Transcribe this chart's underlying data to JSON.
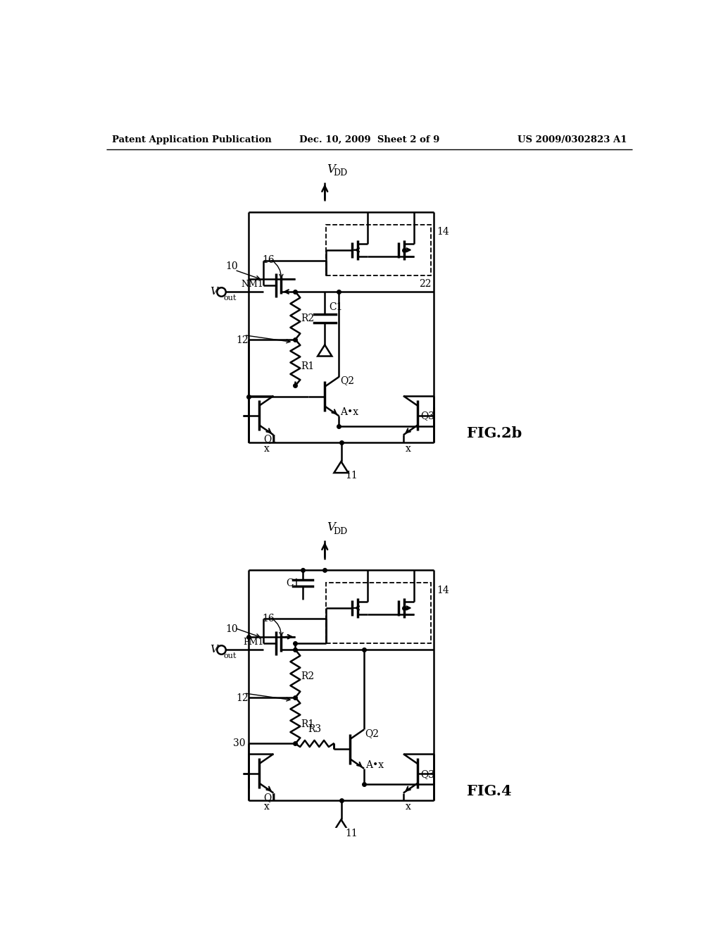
{
  "bg_color": "#ffffff",
  "line_color": "#000000",
  "header_left": "Patent Application Publication",
  "header_center": "Dec. 10, 2009  Sheet 2 of 9",
  "header_right": "US 2009/0302823 A1",
  "fig2b_label": "FIG.2b",
  "fig4_label": "FIG.4"
}
